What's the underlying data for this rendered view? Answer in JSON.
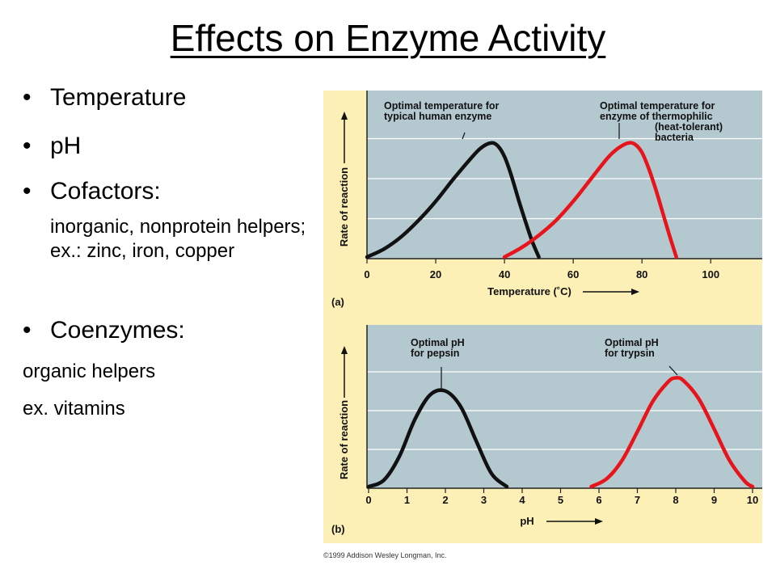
{
  "slide": {
    "title": "Effects on Enzyme Activity",
    "bullets": [
      "Temperature",
      "pH",
      "Cofactors:",
      "Coenzymes:"
    ],
    "cofactor_detail": " inorganic, nonprotein helpers; ex.: zinc, iron, copper",
    "coenzyme_lines": [
      "organic helpers",
      "ex. vitamins"
    ],
    "copyright": "©1999 Addison Wesley Longman, Inc."
  },
  "colors": {
    "plot_bg": "#b4c8cf",
    "panel_bg": "#fdf0b7",
    "curve_black": "#111111",
    "curve_red": "#e8141b",
    "grid": "#ffffff"
  },
  "chart_data": [
    {
      "type": "line",
      "panel_label": "(a)",
      "xlabel": "Temperature (˚C)",
      "ylabel": "Rate of reaction",
      "xlim": [
        0,
        115
      ],
      "ylim": [
        0,
        1
      ],
      "x_ticks": [
        "0",
        "20",
        "40",
        "60",
        "80",
        "100"
      ],
      "grid": true,
      "series": [
        {
          "color": "black",
          "x": [
            0,
            5,
            10,
            15,
            20,
            25,
            30,
            33,
            36,
            38,
            40,
            42,
            44,
            46,
            48,
            50
          ],
          "y": [
            0.0,
            0.06,
            0.15,
            0.27,
            0.41,
            0.57,
            0.72,
            0.8,
            0.84,
            0.82,
            0.74,
            0.6,
            0.43,
            0.27,
            0.12,
            0.0
          ]
        },
        {
          "color": "red",
          "x": [
            40,
            45,
            50,
            55,
            60,
            65,
            70,
            73,
            76,
            78,
            80,
            82,
            84,
            86,
            88,
            90
          ],
          "y": [
            0.0,
            0.07,
            0.16,
            0.27,
            0.41,
            0.57,
            0.73,
            0.8,
            0.84,
            0.83,
            0.77,
            0.65,
            0.5,
            0.33,
            0.16,
            0.0
          ]
        }
      ],
      "annotations": [
        {
          "lines": [
            "Optimal temperature for",
            "typical human enzyme"
          ]
        },
        {
          "lines": [
            "Optimal temperature for",
            "enzyme of thermophilic",
            "(heat-tolerant)",
            "bacteria"
          ]
        }
      ]
    },
    {
      "type": "line",
      "panel_label": "(b)",
      "xlabel": "pH",
      "ylabel": "Rate of reaction",
      "xlim": [
        0,
        10.2
      ],
      "ylim": [
        0,
        1
      ],
      "x_ticks": [
        "0",
        "1",
        "2",
        "3",
        "4",
        "5",
        "6",
        "7",
        "8",
        "9",
        "10"
      ],
      "grid": true,
      "series": [
        {
          "color": "black",
          "x": [
            0,
            0.4,
            0.8,
            1.2,
            1.6,
            2.0,
            2.4,
            2.8,
            3.2,
            3.6
          ],
          "y": [
            0.0,
            0.05,
            0.23,
            0.51,
            0.7,
            0.73,
            0.61,
            0.35,
            0.1,
            0.0
          ]
        },
        {
          "color": "red",
          "x": [
            5.8,
            6.2,
            6.6,
            7.0,
            7.4,
            7.8,
            8.0,
            8.2,
            8.6,
            9.0,
            9.4,
            9.8,
            10.0
          ],
          "y": [
            0.0,
            0.06,
            0.2,
            0.42,
            0.65,
            0.8,
            0.83,
            0.81,
            0.67,
            0.44,
            0.2,
            0.04,
            0.0
          ]
        }
      ],
      "annotations": [
        {
          "lines": [
            "Optimal pH",
            "for pepsin"
          ]
        },
        {
          "lines": [
            "Optimal pH",
            "for trypsin"
          ]
        }
      ]
    }
  ]
}
